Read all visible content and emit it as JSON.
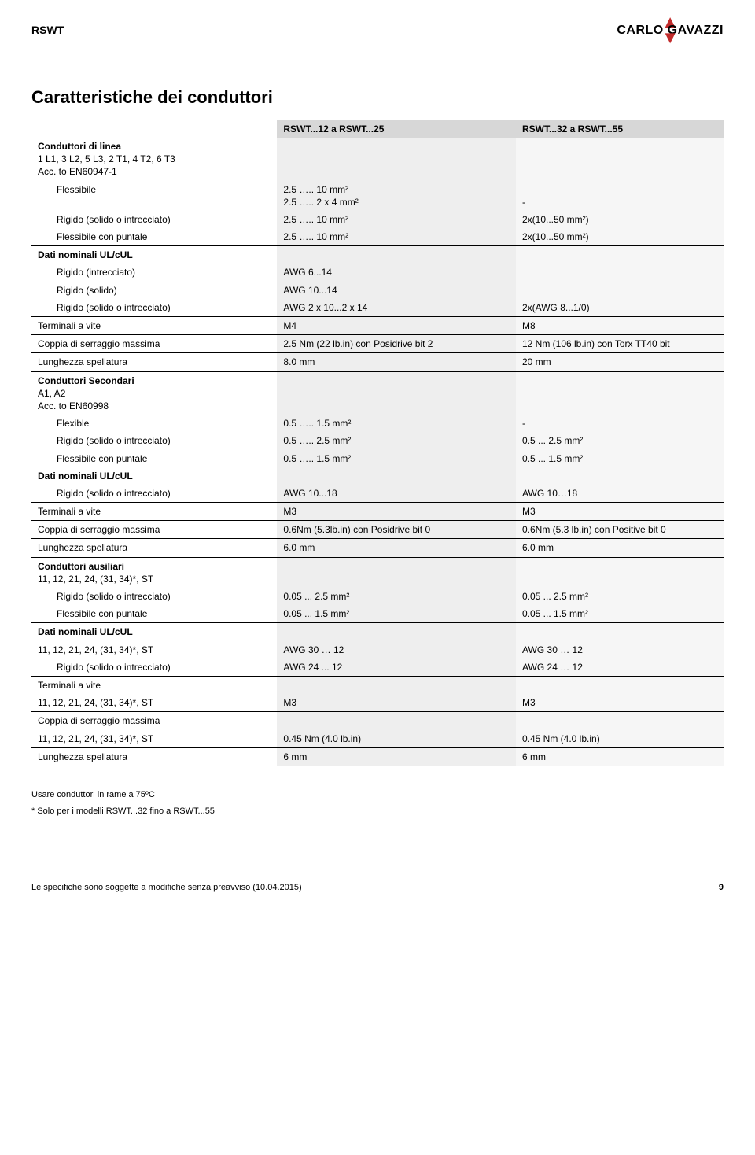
{
  "header": {
    "product_code": "RSWT",
    "brand": "CARLO GAVAZZI"
  },
  "title": "Caratteristiche dei conduttori",
  "col_headers": {
    "a": "RSWT...12 a RSWT...25",
    "b": "RSWT...32 a RSWT...55"
  },
  "rows": [
    {
      "type": "group",
      "label": "Conduttori di linea",
      "sub": "1 L1, 3 L2, 5 L3, 2 T1, 4 T2, 6 T3\nAcc. to EN60947-1"
    },
    {
      "type": "item",
      "label": "Flessibile",
      "a": "2.5 ….. 10 mm²\n2.5 ….. 2 x 4 mm²",
      "b": "\n-"
    },
    {
      "type": "item",
      "label": "Rigido (solido o intrecciato)",
      "a": "2.5 ….. 10 mm²",
      "b": "2x(10...50 mm²)"
    },
    {
      "type": "item",
      "label": "Flessibile con puntale",
      "a": "2.5 ….. 10 mm²",
      "b": "2x(10...50 mm²)"
    },
    {
      "type": "group-border",
      "label": "Dati nominali UL/cUL"
    },
    {
      "type": "item",
      "label": "Rigido (intrecciato)",
      "a": "AWG 6...14",
      "b": ""
    },
    {
      "type": "item",
      "label": "Rigido (solido)",
      "a": "AWG 10...14",
      "b": ""
    },
    {
      "type": "item",
      "label": "Rigido (solido o intrecciato)",
      "a": "AWG 2 x 10...2 x 14",
      "b": "2x(AWG 8...1/0)"
    },
    {
      "type": "plain-border",
      "label": "Terminali a vite",
      "a": "M4",
      "b": "M8"
    },
    {
      "type": "plain-border",
      "label": "Coppia di serraggio massima",
      "a": "2.5 Nm (22 lb.in) con Posidrive bit 2",
      "b": "12 Nm (106 lb.in) con Torx TT40 bit"
    },
    {
      "type": "plain-border",
      "label": "Lunghezza spellatura",
      "a": "8.0 mm",
      "b": "20 mm"
    },
    {
      "type": "group-border",
      "label": "Conduttori Secondari",
      "sub": "A1, A2\nAcc. to EN60998"
    },
    {
      "type": "item",
      "label": "Flexible",
      "a": "0.5 ….. 1.5 mm²",
      "b": "-"
    },
    {
      "type": "item",
      "label": "Rigido (solido o intrecciato)",
      "a": "0.5 ….. 2.5 mm²",
      "b": "0.5 ... 2.5 mm²"
    },
    {
      "type": "item",
      "label": "Flessibile con puntale",
      "a": "0.5 ….. 1.5 mm²",
      "b": "0.5 ... 1.5 mm²"
    },
    {
      "type": "group",
      "label": "Dati nominali UL/cUL"
    },
    {
      "type": "item",
      "label": "Rigido (solido o intrecciato)",
      "a": "AWG 10...18",
      "b": "AWG 10…18"
    },
    {
      "type": "plain-border",
      "label": "Terminali a vite",
      "a": "M3",
      "b": "M3"
    },
    {
      "type": "plain-border",
      "label": "Coppia di serraggio massima",
      "a": "0.6Nm (5.3lb.in) con Posidrive bit 0",
      "b": "0.6Nm (5.3 lb.in) con Positive bit 0"
    },
    {
      "type": "plain-border",
      "label": "Lunghezza spellatura",
      "a": "6.0 mm",
      "b": "6.0 mm"
    },
    {
      "type": "group-border",
      "label": "Conduttori ausiliari",
      "sub": "11, 12, 21, 24, (31, 34)*, ST"
    },
    {
      "type": "item",
      "label": "Rigido (solido o intrecciato)",
      "a": "0.05 ... 2.5 mm²",
      "b": "0.05 ... 2.5 mm²"
    },
    {
      "type": "item",
      "label": "Flessibile con puntale",
      "a": "0.05 ... 1.5 mm²",
      "b": "0.05 ... 1.5 mm²"
    },
    {
      "type": "group-border",
      "label": "Dati nominali UL/cUL"
    },
    {
      "type": "plain",
      "label": "11, 12, 21, 24, (31, 34)*, ST",
      "a": "AWG 30 … 12",
      "b": "AWG 30 … 12"
    },
    {
      "type": "item",
      "label": "Rigido (solido o intrecciato)",
      "a": "AWG 24 ... 12",
      "b": "AWG 24 … 12"
    },
    {
      "type": "plain-border",
      "label": "Terminali a vite"
    },
    {
      "type": "plain",
      "label": "11, 12, 21, 24, (31, 34)*, ST",
      "a": "M3",
      "b": "M3"
    },
    {
      "type": "plain-border",
      "label": "Coppia di serraggio massima"
    },
    {
      "type": "plain",
      "label": "11, 12, 21, 24, (31, 34)*, ST",
      "a": "0.45 Nm (4.0 lb.in)",
      "b": "0.45 Nm (4.0 lb.in)"
    },
    {
      "type": "plain-border",
      "label": "Lunghezza spellatura",
      "a": "6 mm",
      "b": "6 mm",
      "bottom_border": true
    }
  ],
  "footnotes": [
    "Usare conduttori in rame a 75ºC",
    "* Solo per i modelli RSWT...32 fino a RSWT...55"
  ],
  "footer": {
    "left": "Le specifiche sono soggette a modifiche senza preavviso (10.04.2015)",
    "page": "9"
  }
}
